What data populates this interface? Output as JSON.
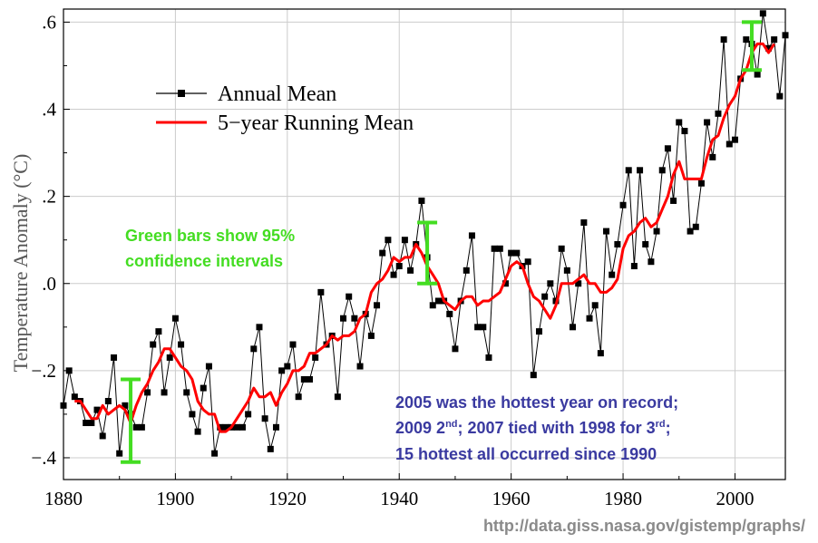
{
  "chart_data": {
    "type": "line",
    "xlabel": "",
    "ylabel": "Temperature Anomaly (°C)",
    "xlim": [
      1880,
      2009
    ],
    "ylim": [
      -0.45,
      0.63
    ],
    "x_ticks": [
      1880,
      1900,
      1920,
      1940,
      1960,
      1980,
      2000
    ],
    "x_tick_labels": [
      "1880",
      "1900",
      "1920",
      "1940",
      "1960",
      "1980",
      "2000"
    ],
    "y_ticks": [
      -0.4,
      -0.2,
      0.0,
      0.2,
      0.4,
      0.6
    ],
    "y_tick_labels": [
      "−.4",
      "−.2",
      ".0",
      ".2",
      ".4",
      ".6"
    ],
    "legend_position": "top-left",
    "grid": true,
    "colors": {
      "annual": "#000000",
      "running": "#ff0000",
      "confidence": "#44dd22",
      "note_blue": "#3a3aa0",
      "source": "#8a8a8a"
    },
    "series": [
      {
        "name": "Annual Mean",
        "style": "line-with-square-markers",
        "x": [
          1880,
          1881,
          1882,
          1883,
          1884,
          1885,
          1886,
          1887,
          1888,
          1889,
          1890,
          1891,
          1892,
          1893,
          1894,
          1895,
          1896,
          1897,
          1898,
          1899,
          1900,
          1901,
          1902,
          1903,
          1904,
          1905,
          1906,
          1907,
          1908,
          1909,
          1910,
          1911,
          1912,
          1913,
          1914,
          1915,
          1916,
          1917,
          1918,
          1919,
          1920,
          1921,
          1922,
          1923,
          1924,
          1925,
          1926,
          1927,
          1928,
          1929,
          1930,
          1931,
          1932,
          1933,
          1934,
          1935,
          1936,
          1937,
          1938,
          1939,
          1940,
          1941,
          1942,
          1943,
          1944,
          1945,
          1946,
          1947,
          1948,
          1949,
          1950,
          1951,
          1952,
          1953,
          1954,
          1955,
          1956,
          1957,
          1958,
          1959,
          1960,
          1961,
          1962,
          1963,
          1964,
          1965,
          1966,
          1967,
          1968,
          1969,
          1970,
          1971,
          1972,
          1973,
          1974,
          1975,
          1976,
          1977,
          1978,
          1979,
          1980,
          1981,
          1982,
          1983,
          1984,
          1985,
          1986,
          1987,
          1988,
          1989,
          1990,
          1991,
          1992,
          1993,
          1994,
          1995,
          1996,
          1997,
          1998,
          1999,
          2000,
          2001,
          2002,
          2003,
          2004,
          2005,
          2006,
          2007,
          2008,
          2009
        ],
        "values": [
          -0.28,
          -0.2,
          -0.26,
          -0.27,
          -0.32,
          -0.32,
          -0.29,
          -0.35,
          -0.27,
          -0.17,
          -0.39,
          -0.28,
          -0.3,
          -0.33,
          -0.33,
          -0.25,
          -0.14,
          -0.11,
          -0.25,
          -0.17,
          -0.08,
          -0.14,
          -0.25,
          -0.3,
          -0.34,
          -0.24,
          -0.19,
          -0.39,
          -0.33,
          -0.33,
          -0.33,
          -0.33,
          -0.33,
          -0.3,
          -0.15,
          -0.1,
          -0.31,
          -0.38,
          -0.33,
          -0.2,
          -0.19,
          -0.14,
          -0.26,
          -0.22,
          -0.22,
          -0.17,
          -0.02,
          -0.14,
          -0.12,
          -0.26,
          -0.08,
          -0.03,
          -0.08,
          -0.19,
          -0.07,
          -0.12,
          -0.05,
          0.07,
          0.1,
          0.02,
          0.04,
          0.1,
          0.03,
          0.09,
          0.19,
          0.06,
          -0.05,
          -0.04,
          -0.04,
          -0.07,
          -0.15,
          -0.04,
          0.03,
          0.11,
          -0.1,
          -0.1,
          -0.17,
          0.08,
          0.08,
          0.0,
          0.07,
          0.07,
          0.04,
          0.05,
          -0.21,
          -0.11,
          -0.03,
          0.0,
          -0.04,
          0.08,
          0.03,
          -0.1,
          0.0,
          0.14,
          -0.08,
          -0.05,
          -0.16,
          0.12,
          0.02,
          0.09,
          0.18,
          0.26,
          0.04,
          0.26,
          0.09,
          0.05,
          0.12,
          0.26,
          0.31,
          0.19,
          0.37,
          0.35,
          0.12,
          0.13,
          0.23,
          0.37,
          0.29,
          0.39,
          0.56,
          0.32,
          0.33,
          0.47,
          0.56,
          0.55,
          0.48,
          0.62,
          0.54,
          0.56,
          0.43,
          0.57
        ]
      },
      {
        "name": "5−year Running Mean",
        "style": "thick-line",
        "x": [
          1882,
          1883,
          1884,
          1885,
          1886,
          1887,
          1888,
          1889,
          1890,
          1891,
          1892,
          1893,
          1894,
          1895,
          1896,
          1897,
          1898,
          1899,
          1900,
          1901,
          1902,
          1903,
          1904,
          1905,
          1906,
          1907,
          1908,
          1909,
          1910,
          1911,
          1912,
          1913,
          1914,
          1915,
          1916,
          1917,
          1918,
          1919,
          1920,
          1921,
          1922,
          1923,
          1924,
          1925,
          1926,
          1927,
          1928,
          1929,
          1930,
          1931,
          1932,
          1933,
          1934,
          1935,
          1936,
          1937,
          1938,
          1939,
          1940,
          1941,
          1942,
          1943,
          1944,
          1945,
          1946,
          1947,
          1948,
          1949,
          1950,
          1951,
          1952,
          1953,
          1954,
          1955,
          1956,
          1957,
          1958,
          1959,
          1960,
          1961,
          1962,
          1963,
          1964,
          1965,
          1966,
          1967,
          1968,
          1969,
          1970,
          1971,
          1972,
          1973,
          1974,
          1975,
          1976,
          1977,
          1978,
          1979,
          1980,
          1981,
          1982,
          1983,
          1984,
          1985,
          1986,
          1987,
          1988,
          1989,
          1990,
          1991,
          1992,
          1993,
          1994,
          1995,
          1996,
          1997,
          1998,
          1999,
          2000,
          2001,
          2002,
          2003,
          2004,
          2005,
          2006,
          2007
        ],
        "values": [
          -0.27,
          -0.27,
          -0.29,
          -0.31,
          -0.31,
          -0.28,
          -0.3,
          -0.29,
          -0.28,
          -0.29,
          -0.32,
          -0.28,
          -0.25,
          -0.23,
          -0.2,
          -0.18,
          -0.15,
          -0.15,
          -0.17,
          -0.19,
          -0.2,
          -0.22,
          -0.27,
          -0.29,
          -0.3,
          -0.3,
          -0.34,
          -0.34,
          -0.33,
          -0.31,
          -0.29,
          -0.27,
          -0.24,
          -0.26,
          -0.26,
          -0.25,
          -0.28,
          -0.25,
          -0.23,
          -0.2,
          -0.2,
          -0.19,
          -0.16,
          -0.16,
          -0.15,
          -0.14,
          -0.12,
          -0.13,
          -0.12,
          -0.12,
          -0.11,
          -0.08,
          -0.07,
          -0.02,
          0.0,
          0.01,
          0.03,
          0.06,
          0.05,
          0.06,
          0.06,
          0.09,
          0.07,
          0.04,
          0.02,
          0.0,
          -0.04,
          -0.05,
          -0.06,
          -0.04,
          -0.03,
          -0.03,
          -0.05,
          -0.04,
          -0.04,
          -0.03,
          -0.02,
          0.01,
          0.04,
          0.05,
          0.04,
          0.0,
          -0.03,
          -0.04,
          -0.06,
          -0.08,
          -0.05,
          0.0,
          0.0,
          0.0,
          0.01,
          0.02,
          0.0,
          0.0,
          -0.02,
          -0.02,
          -0.01,
          0.01,
          0.08,
          0.11,
          0.12,
          0.14,
          0.15,
          0.13,
          0.14,
          0.17,
          0.2,
          0.25,
          0.28,
          0.24,
          0.24,
          0.24,
          0.24,
          0.29,
          0.33,
          0.34,
          0.38,
          0.41,
          0.43,
          0.47,
          0.49,
          0.53,
          0.55,
          0.55,
          0.53,
          0.55
        ]
      }
    ],
    "confidence_intervals": [
      {
        "x": 1892,
        "low": -0.41,
        "high": -0.22
      },
      {
        "x": 1945,
        "low": 0.0,
        "high": 0.14
      },
      {
        "x": 2003,
        "low": 0.49,
        "high": 0.6
      }
    ],
    "annotations": {
      "green_note_line1": "Green bars show 95%",
      "green_note_line2": "confidence intervals",
      "blue_line1": "2005 was the hottest year on record;",
      "blue_line2_a": "2009 2",
      "blue_line2_sup1": "nd",
      "blue_line2_b": "; 2007 tied with 1998 for 3",
      "blue_line2_sup2": "rd",
      "blue_line2_c": ";",
      "blue_line3": "15 hottest all occurred since 1990"
    },
    "source": "http://data.giss.nasa.gov/gistemp/graphs/"
  }
}
